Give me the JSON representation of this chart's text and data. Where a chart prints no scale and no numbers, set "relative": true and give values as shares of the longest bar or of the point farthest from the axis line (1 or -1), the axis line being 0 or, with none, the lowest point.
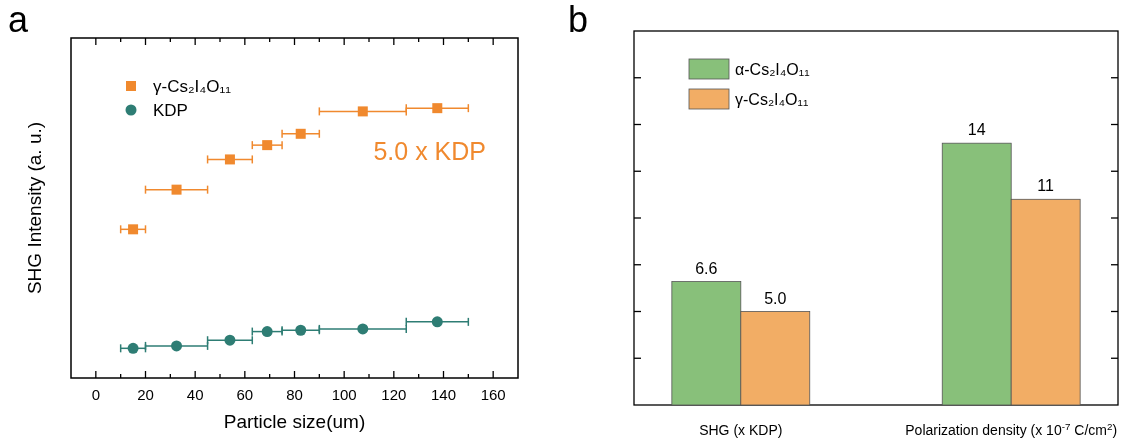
{
  "chart_data": [
    {
      "type": "scatter",
      "title": "a",
      "xlabel": "Particle size(um)",
      "ylabel": "SHG Intensity (a. u.)",
      "relative": true,
      "legend": "top left",
      "x": [
        15,
        32.5,
        54,
        69,
        82.5,
        107.5,
        137.5
      ],
      "xlim": [
        -10,
        170
      ],
      "xticks": [
        0,
        {
          "value": 10,
          "label": null
        },
        20,
        {
          "value": 30,
          "label": null
        },
        40,
        {
          "value": 50,
          "label": null
        },
        60,
        {
          "value": 70,
          "label": null
        },
        80,
        {
          "value": 90,
          "label": null
        },
        100,
        {
          "value": 110,
          "label": null
        },
        120,
        {
          "value": 130,
          "label": null
        },
        140,
        {
          "value": 150,
          "label": null
        },
        160
      ],
      "annotations": [
        "5.0 x KDP"
      ],
      "series": [
        {
          "name": "γ-Cs₂I₄O₁₁",
          "color": "#f0892e",
          "marker": "square",
          "values": [
            0.551,
            0.698,
            0.81,
            0.863,
            0.905,
            0.988,
            1
          ],
          "xerrors": [
            [
              10,
              20
            ],
            [
              20,
              45
            ],
            [
              45,
              63
            ],
            [
              63,
              75
            ],
            [
              75,
              90
            ],
            [
              90,
              125
            ],
            [
              125,
              150
            ]
          ]
        },
        {
          "name": "KDP",
          "color": "#2e7d74",
          "marker": "circle",
          "values": [
            0.11,
            0.119,
            0.14,
            0.172,
            0.177,
            0.182,
            0.208
          ],
          "xerrors": [
            [
              10,
              20
            ],
            [
              20,
              45
            ],
            [
              45,
              63
            ],
            [
              63,
              75
            ],
            [
              75,
              90
            ],
            [
              90,
              125
            ],
            [
              125,
              150
            ]
          ]
        }
      ]
    },
    {
      "type": "bar",
      "title": "b",
      "legend": "top left",
      "tick_labels": "x",
      "categories": [
        "SHG (x KDP)",
        "Polarization density (x 10$^{-7}$ C/cm$^{2}$)"
      ],
      "ylim": [
        0,
        20
      ],
      "yticks": [
        {
          "value": 2.5,
          "label": null
        },
        {
          "value": 5,
          "label": null
        },
        {
          "value": 7.5,
          "label": null
        },
        {
          "value": 10,
          "label": null
        },
        {
          "value": 12.5,
          "label": null
        },
        {
          "value": 15,
          "label": null
        },
        {
          "value": 17.5,
          "label": null
        }
      ],
      "series": [
        {
          "name": "α-Cs₂I₄O₁₁",
          "color": "#88c07a",
          "values": [
            6.6,
            14
          ],
          "value_labels": [
            "6.6",
            "14"
          ]
        },
        {
          "name": "γ-Cs₂I₄O₁₁",
          "color": "#f2ad65",
          "values": [
            5.0,
            11
          ],
          "value_labels": [
            "5.0",
            "11"
          ]
        }
      ]
    }
  ]
}
